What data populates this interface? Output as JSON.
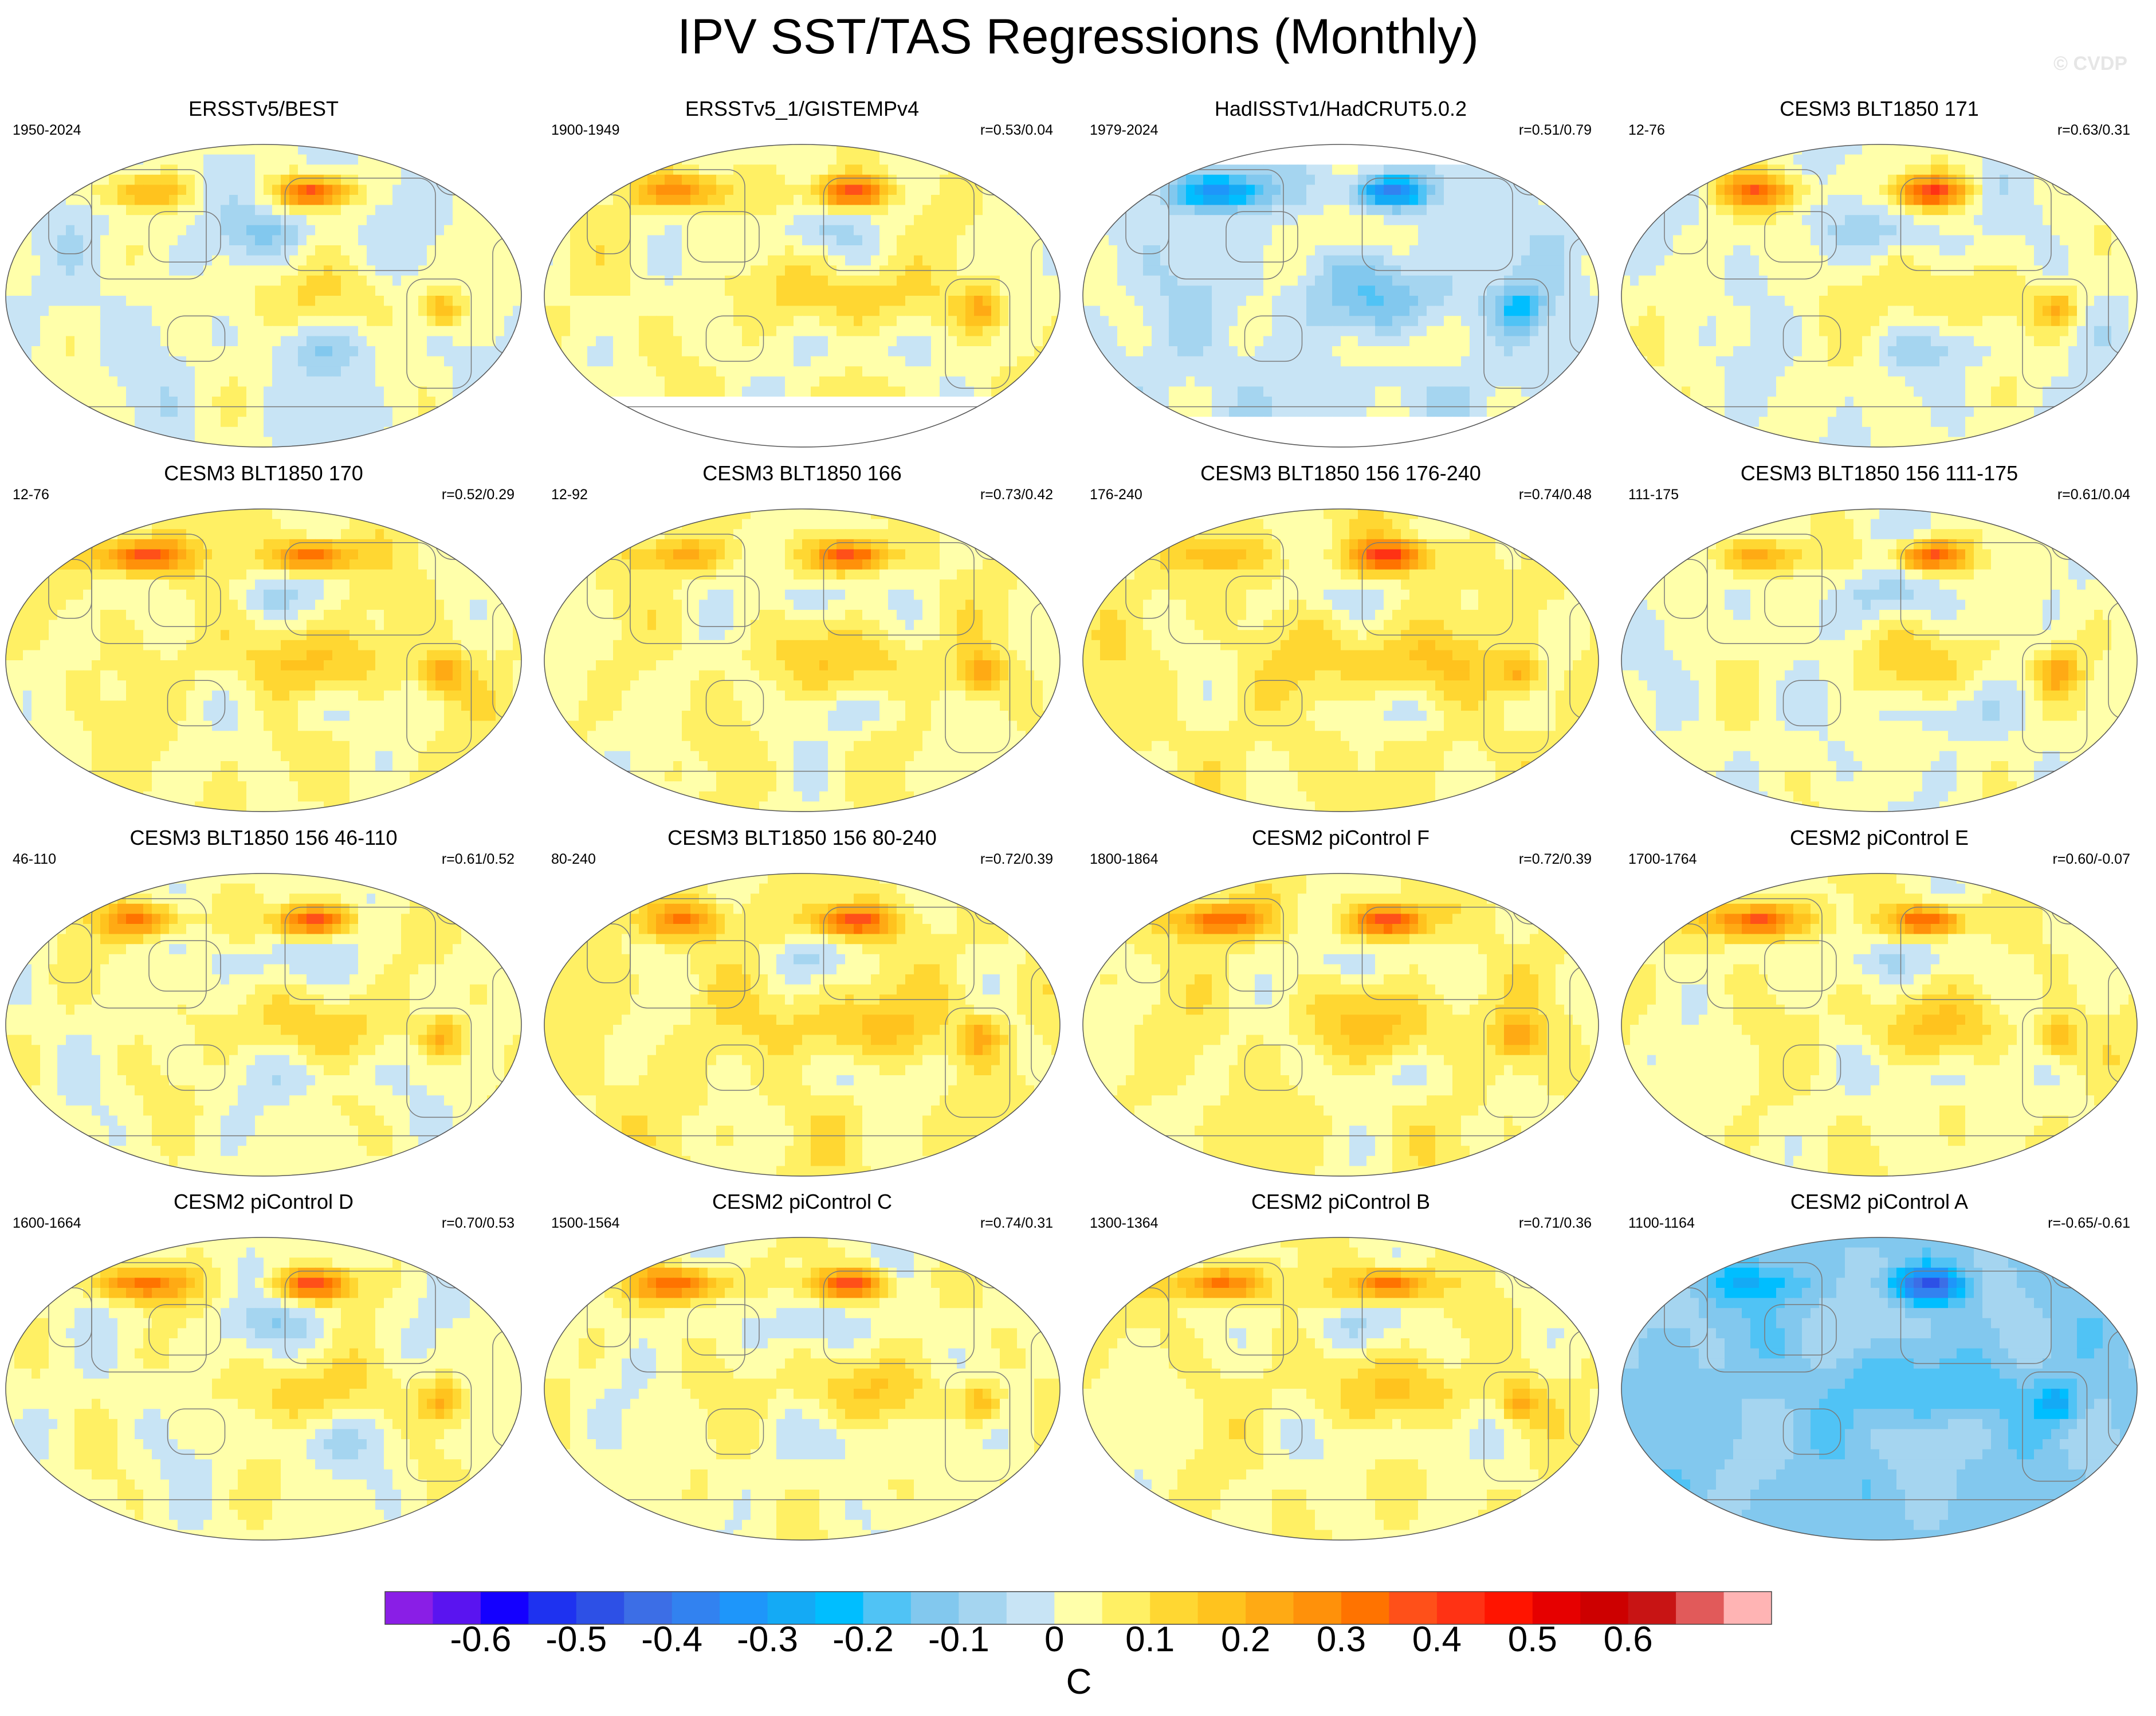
{
  "title": "IPV SST/TAS Regressions (Monthly)",
  "watermark": "© CVDP",
  "colorbar": {
    "units": "C",
    "tick_labels": [
      "-0.6",
      "-0.5",
      "-0.4",
      "-0.3",
      "-0.2",
      "-0.1",
      "0",
      "0.1",
      "0.2",
      "0.3",
      "0.4",
      "0.5",
      "0.6"
    ],
    "levels": [
      -0.65,
      -0.6,
      -0.55,
      -0.5,
      -0.45,
      -0.4,
      -0.35,
      -0.3,
      -0.25,
      -0.2,
      -0.15,
      -0.1,
      -0.05,
      0,
      0.05,
      0.1,
      0.15,
      0.2,
      0.25,
      0.3,
      0.35,
      0.4,
      0.45,
      0.5,
      0.55,
      0.6,
      0.65
    ],
    "colors": [
      "#8a1ee6",
      "#5a14f0",
      "#1400ff",
      "#1e32f0",
      "#2d50e6",
      "#3c6ee6",
      "#3282f0",
      "#1e96fa",
      "#14aaf5",
      "#00beff",
      "#50c3f5",
      "#82c8ee",
      "#a5d5f0",
      "#c8e4f5",
      "#ffffaa",
      "#fff064",
      "#ffd732",
      "#ffc31e",
      "#ffaa14",
      "#ff910a",
      "#ff7300",
      "#ff5019",
      "#ff3214",
      "#ff1400",
      "#e60000",
      "#cd0000",
      "#c81414",
      "#e15a5a",
      "#ffb4b4"
    ]
  },
  "chart_data": [
    {
      "type": "heatmap",
      "title": "ERSSTv5/BEST",
      "period": "1950-2024",
      "r": "",
      "seed": 11,
      "bias": 0.0,
      "missing": "none"
    },
    {
      "type": "heatmap",
      "title": "ERSSTv5_1/GISTEMPv4",
      "period": "1900-1949",
      "r": "r=0.53/0.04",
      "seed": 23,
      "bias": 0.06,
      "missing": "south"
    },
    {
      "type": "heatmap",
      "title": "HadISSTv1/HadCRUT5.0.2",
      "period": "1979-2024",
      "r": "r=0.51/0.79",
      "seed": 37,
      "bias": -0.04,
      "missing": "poles"
    },
    {
      "type": "heatmap",
      "title": "CESM3 BLT1850 171",
      "period": "12-76",
      "r": "r=0.63/0.31",
      "seed": 41,
      "bias": 0.02,
      "missing": "none"
    },
    {
      "type": "heatmap",
      "title": "CESM3 BLT1850 170",
      "period": "12-76",
      "r": "r=0.52/0.29",
      "seed": 53,
      "bias": 0.08,
      "missing": "none"
    },
    {
      "type": "heatmap",
      "title": "CESM3 BLT1850 166",
      "period": "12-92",
      "r": "r=0.73/0.42",
      "seed": 67,
      "bias": 0.07,
      "missing": "none"
    },
    {
      "type": "heatmap",
      "title": "CESM3 BLT1850 156 176-240",
      "period": "176-240",
      "r": "r=0.74/0.48",
      "seed": 71,
      "bias": 0.1,
      "missing": "none"
    },
    {
      "type": "heatmap",
      "title": "CESM3 BLT1850 156 111-175",
      "period": "111-175",
      "r": "r=0.61/0.04",
      "seed": 83,
      "bias": 0.03,
      "missing": "none"
    },
    {
      "type": "heatmap",
      "title": "CESM3 BLT1850 156 46-110",
      "period": "46-110",
      "r": "r=0.61/0.52",
      "seed": 97,
      "bias": 0.05,
      "missing": "none"
    },
    {
      "type": "heatmap",
      "title": "CESM3 BLT1850 156 80-240",
      "period": "80-240",
      "r": "r=0.72/0.39",
      "seed": 101,
      "bias": 0.1,
      "missing": "none"
    },
    {
      "type": "heatmap",
      "title": "CESM2 piControl F",
      "period": "1800-1864",
      "r": "r=0.72/0.39",
      "seed": 113,
      "bias": 0.09,
      "missing": "none"
    },
    {
      "type": "heatmap",
      "title": "CESM2 piControl E",
      "period": "1700-1764",
      "r": "r=0.60/-0.07",
      "seed": 127,
      "bias": 0.06,
      "missing": "none"
    },
    {
      "type": "heatmap",
      "title": "CESM2 piControl D",
      "period": "1600-1664",
      "r": "r=0.70/0.53",
      "seed": 131,
      "bias": 0.04,
      "missing": "none"
    },
    {
      "type": "heatmap",
      "title": "CESM2 piControl C",
      "period": "1500-1564",
      "r": "r=0.74/0.31",
      "seed": 149,
      "bias": 0.05,
      "missing": "none"
    },
    {
      "type": "heatmap",
      "title": "CESM2 piControl B",
      "period": "1300-1364",
      "r": "r=0.71/0.36",
      "seed": 151,
      "bias": 0.07,
      "missing": "none"
    },
    {
      "type": "heatmap",
      "title": "CESM2 piControl A",
      "period": "1100-1164",
      "r": "r=-0.65/-0.61",
      "seed": 163,
      "bias": -0.12,
      "missing": "none"
    }
  ]
}
